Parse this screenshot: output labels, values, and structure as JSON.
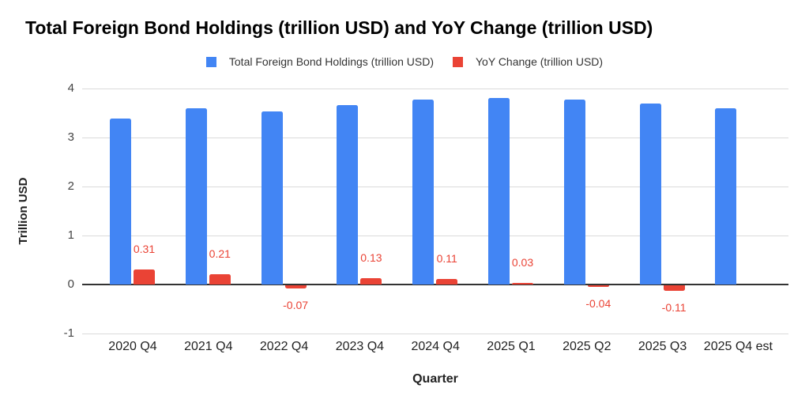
{
  "title": "Total Foreign Bond Holdings (trillion USD) and YoY Change (trillion USD)",
  "legend": [
    {
      "label": "Total Foreign Bond Holdings (trillion USD)",
      "color": "#4285F4"
    },
    {
      "label": "YoY Change (trillion USD)",
      "color": "#EA4335"
    }
  ],
  "axes": {
    "x_title": "Quarter",
    "y_title": "Trillion USD"
  },
  "chart_data": {
    "type": "bar",
    "title": "Total Foreign Bond Holdings (trillion USD) and YoY Change (trillion USD)",
    "categories": [
      "2020 Q4",
      "2021 Q4",
      "2022 Q4",
      "2023 Q4",
      "2024 Q4",
      "2025 Q1",
      "2025 Q2",
      "2025 Q3",
      "2025 Q4 est"
    ],
    "series": [
      {
        "name": "Total Foreign Bond Holdings (trillion USD)",
        "color": "#4285F4",
        "values": [
          3.39,
          3.6,
          3.53,
          3.66,
          3.77,
          3.81,
          3.77,
          3.7,
          3.59
        ]
      },
      {
        "name": "YoY Change (trillion USD)",
        "color": "#EA4335",
        "values": [
          0.31,
          0.21,
          -0.07,
          0.13,
          0.11,
          0.03,
          -0.04,
          -0.11,
          null
        ],
        "data_labels": [
          "0.31",
          "0.21",
          "-0.07",
          "0.13",
          "0.11",
          "0.03",
          "-0.04",
          "-0.11",
          ""
        ]
      }
    ],
    "xlabel": "Quarter",
    "ylabel": "Trillion USD",
    "yticks": [
      4,
      3,
      2,
      1,
      0,
      -1
    ],
    "ylim": [
      -1,
      4
    ],
    "grid": true,
    "legend_position": "top",
    "annotation_color": "#EA4335",
    "baseline_color": "#333333",
    "gridline_color": "#dadada"
  }
}
